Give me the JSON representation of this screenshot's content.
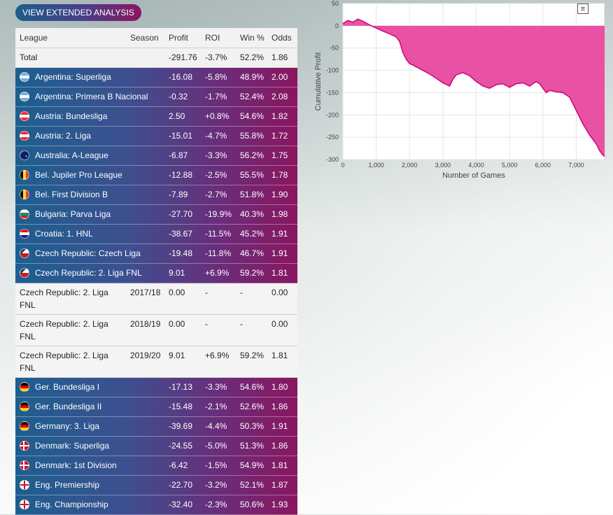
{
  "button": {
    "label": "VIEW EXTENDED ANALYSIS"
  },
  "table": {
    "headers": {
      "league": "League",
      "season": "Season",
      "profit": "Profit",
      "roi": "ROI",
      "win": "Win %",
      "odds": "Odds"
    },
    "total": {
      "league": "Total",
      "season": "",
      "profit": "-291.76",
      "roi": "-3.7%",
      "win": "52.2%",
      "odds": "1.86"
    },
    "rows": [
      {
        "type": "league",
        "flag": "flag-argentina",
        "league": "Argentina: Superliga",
        "profit": "-16.08",
        "roi": "-5.8%",
        "win": "48.9%",
        "odds": "2.00"
      },
      {
        "type": "league",
        "flag": "flag-argentina",
        "league": "Argentina: Primera B Nacional",
        "profit": "-0.32",
        "roi": "-1.7%",
        "win": "52.4%",
        "odds": "2.08"
      },
      {
        "type": "league",
        "flag": "flag-austria",
        "league": "Austria: Bundesliga",
        "profit": "2.50",
        "roi": "+0.8%",
        "win": "54.6%",
        "odds": "1.82"
      },
      {
        "type": "league",
        "flag": "flag-austria",
        "league": "Austria: 2. Liga",
        "profit": "-15.01",
        "roi": "-4.7%",
        "win": "55.8%",
        "odds": "1.72"
      },
      {
        "type": "league",
        "flag": "flag-australia",
        "league": "Australia: A-League",
        "profit": "-6.87",
        "roi": "-3.3%",
        "win": "56.2%",
        "odds": "1.75"
      },
      {
        "type": "league",
        "flag": "flag-belgium",
        "league": "Bel. Jupiler Pro League",
        "profit": "-12.88",
        "roi": "-2.5%",
        "win": "55.5%",
        "odds": "1.78"
      },
      {
        "type": "league",
        "flag": "flag-belgium",
        "league": "Bel. First Division B",
        "profit": "-7.89",
        "roi": "-2.7%",
        "win": "51.8%",
        "odds": "1.90"
      },
      {
        "type": "league",
        "flag": "flag-bulgaria",
        "league": "Bulgaria: Parva Liga",
        "profit": "-27.70",
        "roi": "-19.9%",
        "win": "40.3%",
        "odds": "1.98"
      },
      {
        "type": "league",
        "flag": "flag-croatia",
        "league": "Croatia: 1. HNL",
        "profit": "-38.67",
        "roi": "-11.5%",
        "win": "45.2%",
        "odds": "1.91"
      },
      {
        "type": "league",
        "flag": "flag-czech",
        "league": "Czech Republic: Czech Liga",
        "profit": "-19.48",
        "roi": "-11.8%",
        "win": "46.7%",
        "odds": "1.91"
      },
      {
        "type": "league",
        "flag": "flag-czech",
        "league": "Czech Republic: 2. Liga FNL",
        "profit": "9.01",
        "roi": "+6.9%",
        "win": "59.2%",
        "odds": "1.81"
      },
      {
        "type": "season",
        "league": "Czech Republic: 2. Liga FNL",
        "season": "2017/18",
        "profit": "0.00",
        "roi": "-",
        "win": "-",
        "odds": "0.00"
      },
      {
        "type": "season",
        "league": "Czech Republic: 2. Liga FNL",
        "season": "2018/19",
        "profit": "0.00",
        "roi": "-",
        "win": "-",
        "odds": "0.00"
      },
      {
        "type": "season",
        "league": "Czech Republic: 2. Liga FNL",
        "season": "2019/20",
        "profit": "9.01",
        "roi": "+6.9%",
        "win": "59.2%",
        "odds": "1.81"
      },
      {
        "type": "league",
        "flag": "flag-germany",
        "league": "Ger. Bundesliga I",
        "profit": "-17.13",
        "roi": "-3.3%",
        "win": "54.6%",
        "odds": "1.80"
      },
      {
        "type": "league",
        "flag": "flag-germany",
        "league": "Ger. Bundesliga II",
        "profit": "-15.48",
        "roi": "-2.1%",
        "win": "52.6%",
        "odds": "1.86"
      },
      {
        "type": "league",
        "flag": "flag-germany",
        "league": "Germany: 3. Liga",
        "profit": "-39.69",
        "roi": "-4.4%",
        "win": "50.3%",
        "odds": "1.91"
      },
      {
        "type": "league",
        "flag": "flag-denmark",
        "league": "Denmark: Superliga",
        "profit": "-24.55",
        "roi": "-5.0%",
        "win": "51.3%",
        "odds": "1.86"
      },
      {
        "type": "league",
        "flag": "flag-denmark",
        "league": "Denmark: 1st Division",
        "profit": "-6.42",
        "roi": "-1.5%",
        "win": "54.9%",
        "odds": "1.81"
      },
      {
        "type": "league",
        "flag": "flag-england",
        "league": "Eng. Premiership",
        "profit": "-22.70",
        "roi": "-3.2%",
        "win": "52.1%",
        "odds": "1.87"
      },
      {
        "type": "league",
        "flag": "flag-england",
        "league": "Eng. Championship",
        "profit": "-32.40",
        "roi": "-2.3%",
        "win": "50.6%",
        "odds": "1.93"
      }
    ]
  },
  "chart_menu": {
    "icon": "menu-icon",
    "label": "≡"
  },
  "chart_data": {
    "type": "area",
    "title": "",
    "xlabel": "Number of Games",
    "ylabel": "Cumulative Profit",
    "xlim": [
      0,
      7850
    ],
    "ylim": [
      -300,
      50
    ],
    "xticks": [
      0,
      1000,
      2000,
      3000,
      4000,
      5000,
      6000,
      7000
    ],
    "xtick_labels": [
      "0",
      "1,000",
      "2,000",
      "3,000",
      "4,000",
      "5,000",
      "6,000",
      "7,000"
    ],
    "yticks": [
      50,
      0,
      -50,
      -100,
      -150,
      -200,
      -250,
      -300
    ],
    "ytick_labels": [
      "50",
      "0",
      "-50",
      "-100",
      "-150",
      "-200",
      "-250",
      "-300"
    ],
    "grid": true,
    "color": "#e8489f",
    "series": [
      {
        "x": [
          0,
          150,
          300,
          450,
          600,
          800,
          1000,
          1200,
          1400,
          1600,
          1700,
          1800,
          1900,
          2000,
          2100,
          2200,
          2400,
          2600,
          2800,
          3000,
          3200,
          3300,
          3400,
          3600,
          3800,
          4000,
          4200,
          4400,
          4600,
          4800,
          5000,
          5200,
          5400,
          5600,
          5800,
          5900,
          6000,
          6100,
          6200,
          6400,
          6600,
          6800,
          7000,
          7200,
          7400,
          7600,
          7700,
          7800,
          7850
        ],
        "y": [
          5,
          12,
          8,
          15,
          10,
          2,
          -5,
          -12,
          -18,
          -25,
          -35,
          -60,
          -75,
          -85,
          -88,
          -92,
          -100,
          -108,
          -118,
          -128,
          -135,
          -120,
          -110,
          -105,
          -112,
          -125,
          -135,
          -140,
          -132,
          -130,
          -138,
          -130,
          -128,
          -135,
          -125,
          -130,
          -140,
          -150,
          -145,
          -148,
          -150,
          -160,
          -190,
          -220,
          -245,
          -265,
          -280,
          -290,
          -293
        ]
      }
    ]
  }
}
